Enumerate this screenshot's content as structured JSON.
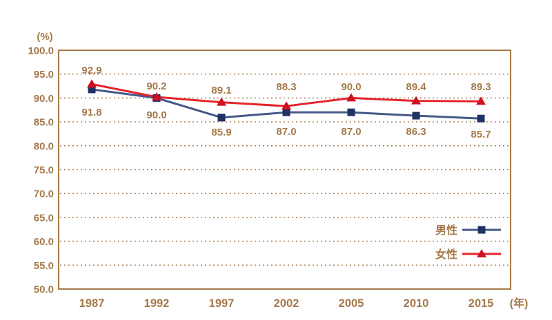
{
  "chart_data": {
    "type": "line",
    "title": "",
    "categories": [
      "1987",
      "1992",
      "1997",
      "2002",
      "2005",
      "2010",
      "2015"
    ],
    "series": [
      {
        "name": "男性",
        "values": [
          91.8,
          90.0,
          85.9,
          87.0,
          87.0,
          86.3,
          85.7
        ],
        "line_color": "#46588a",
        "marker_color": "#1e3263",
        "marker": "square",
        "label_position": "below"
      },
      {
        "name": "女性",
        "values": [
          92.9,
          90.2,
          89.1,
          88.3,
          90.0,
          89.4,
          89.3
        ],
        "line_color": "#e5232b",
        "marker_color": "#cf1021",
        "marker": "triangle",
        "label_position": "above"
      }
    ],
    "ylim": [
      50,
      100
    ],
    "ytick_step": 5,
    "ytick_labels": [
      "100.0",
      "95.0",
      "90.0",
      "85.0",
      "80.0",
      "75.0",
      "70.0",
      "65.0",
      "60.0",
      "55.0",
      "50.0"
    ],
    "y_unit_label": "(%)",
    "x_unit_label": "(年)",
    "grid": "horizontal-dotted",
    "legend_position": "inside-right",
    "legend_entries": [
      "男性",
      "女性"
    ],
    "axis_color": "#a5794a",
    "text_color": "#a5794a",
    "background_color": "#ffffff"
  }
}
